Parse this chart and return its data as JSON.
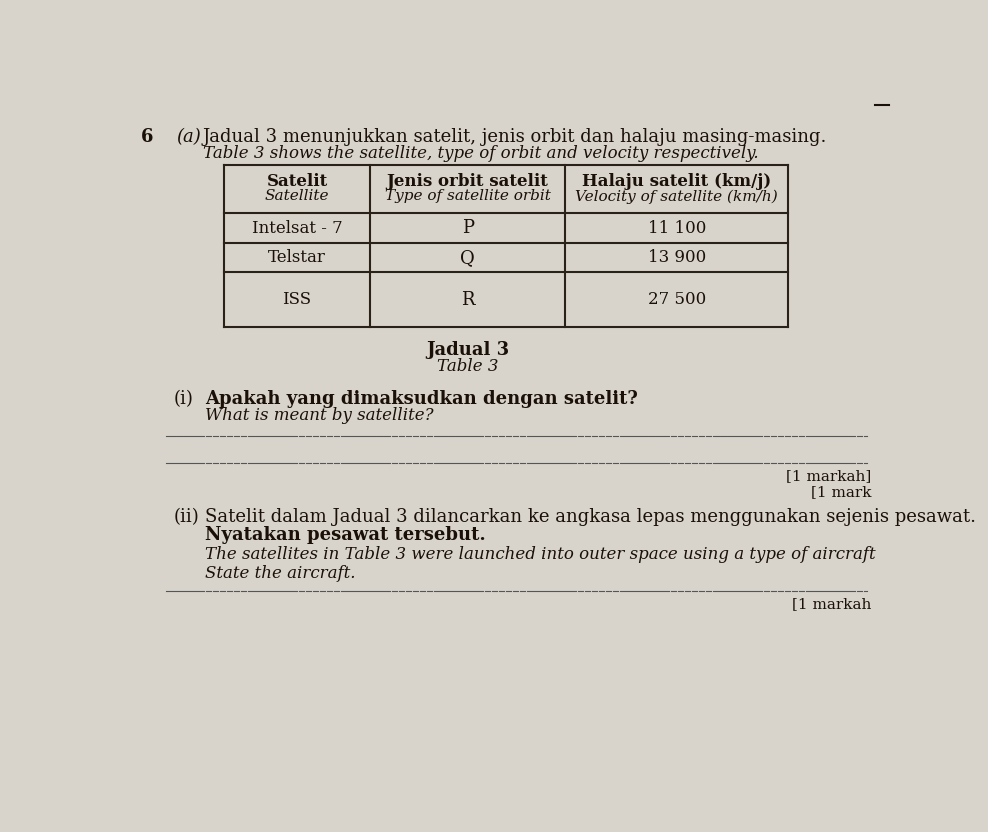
{
  "bg_color": "#d8d4cc",
  "table_bg": "#e8e5de",
  "question_number": "6",
  "sub_label": "(a)",
  "malay_heading": "Jadual 3 menunjukkan satelit, jenis orbit dan halaju masing-masing.",
  "english_heading": "Table 3 shows the satellite, type of orbit and velocity respectively.",
  "table_caption_malay": "Jadual 3",
  "table_caption_english": "Table 3",
  "col_headers": [
    [
      "Satelit",
      "Satellite"
    ],
    [
      "Jenis orbit satelit",
      "Type of satellite orbit"
    ],
    [
      "Halaju satelit (km/j)",
      "Velocity of satellite (km/h)"
    ]
  ],
  "rows": [
    [
      "Intelsat - 7",
      "P",
      "11 100"
    ],
    [
      "Telstar",
      "Q",
      "13 900"
    ],
    [
      "ISS",
      "R",
      "27 500"
    ]
  ],
  "q_i_label": "(i)",
  "q_i_malay": "Apakah yang dimaksudkan dengan satelit?",
  "q_i_english": "What is meant by satellite?",
  "q_i_mark_malay": "[1 markah]",
  "q_i_mark_english": "[1 mark",
  "q_ii_label": "(ii)",
  "q_ii_malay_1": "Satelit dalam Jadual 3 dilancarkan ke angkasa lepas menggunakan sejenis pesawat.",
  "q_ii_malay_2": "Nyatakan pesawat tersebut.",
  "q_ii_english_1": "The satellites in Table 3 were launched into outer space using a type of aircraft",
  "q_ii_english_2": "State the aircraft.",
  "q_ii_mark_malay": "[1 markah",
  "text_color": "#1a1008",
  "line_color": "#2a2218"
}
